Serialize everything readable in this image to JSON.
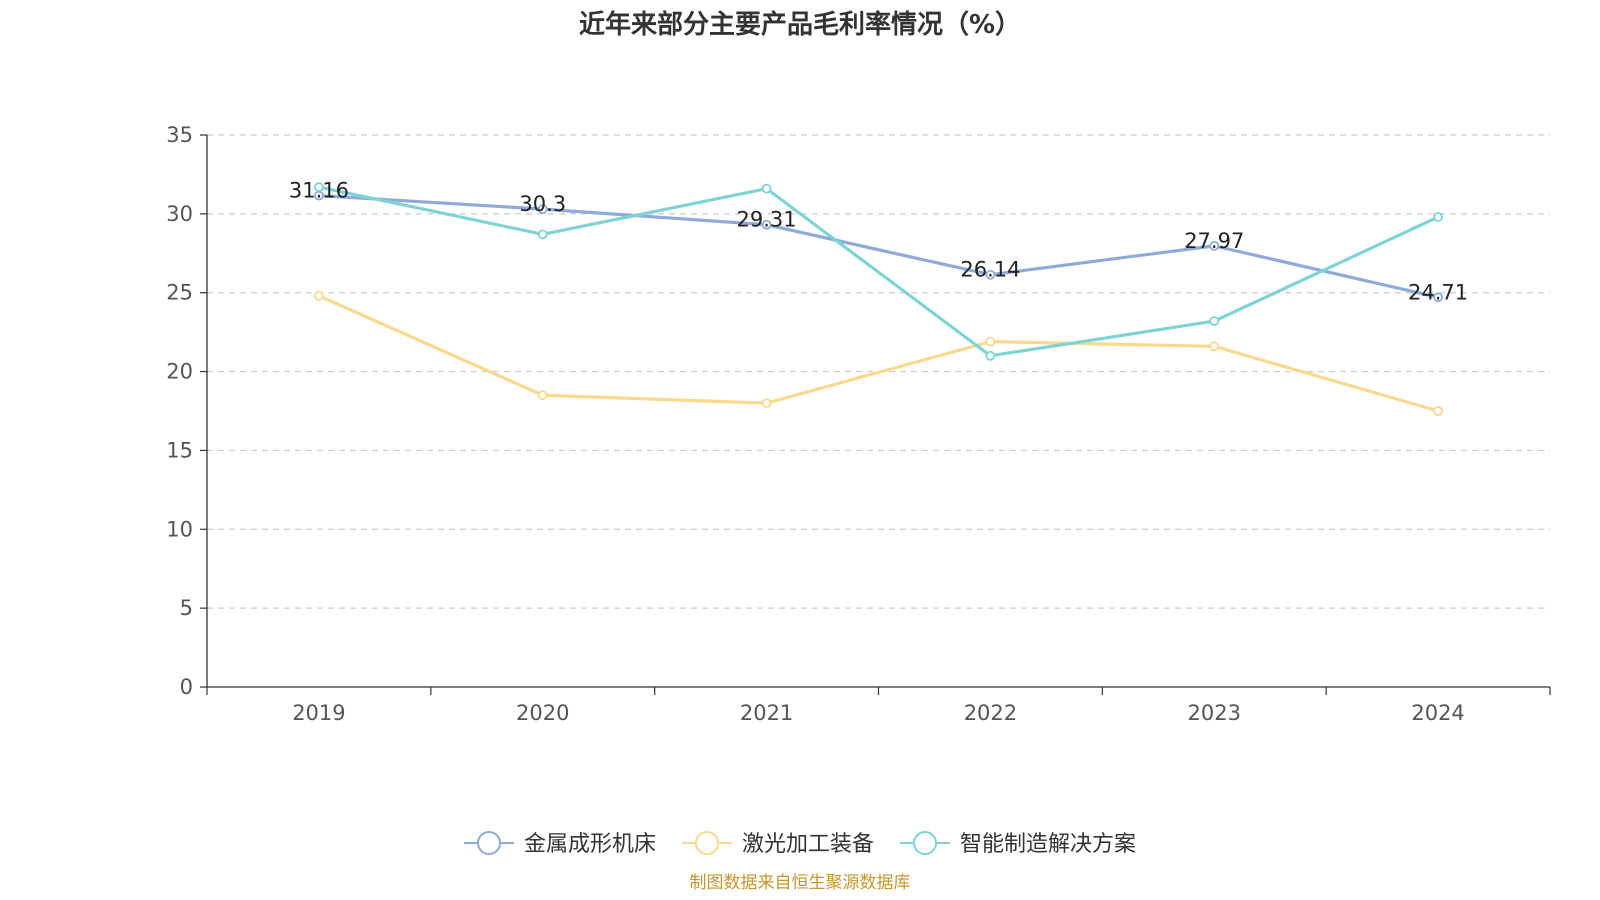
{
  "chart_data": {
    "type": "line",
    "title": "近年来部分主要产品毛利率情况（%）",
    "categories": [
      "2019",
      "2020",
      "2021",
      "2022",
      "2023",
      "2024"
    ],
    "ylim": [
      0,
      35
    ],
    "yticks": [
      0,
      5,
      10,
      15,
      20,
      25,
      30,
      35
    ],
    "grid": true,
    "legend_position": "bottom",
    "series": [
      {
        "name": "金属成形机床",
        "color": "#8eaad8",
        "values": [
          31.16,
          30.3,
          29.31,
          26.14,
          27.97,
          24.71
        ],
        "show_labels": true
      },
      {
        "name": "激光加工装备",
        "color": "#fad88e",
        "values": [
          24.8,
          18.5,
          18.0,
          21.9,
          21.6,
          17.5
        ],
        "show_labels": false
      },
      {
        "name": "智能制造解决方案",
        "color": "#7fd3d5",
        "values": [
          31.7,
          28.7,
          31.6,
          21.0,
          23.2,
          29.8
        ],
        "show_labels": false
      }
    ]
  },
  "source_text": "制图数据来自恒生聚源数据库",
  "colors": {
    "source": "#c8962a",
    "axis": "#333333",
    "grid": "#cccccc"
  }
}
